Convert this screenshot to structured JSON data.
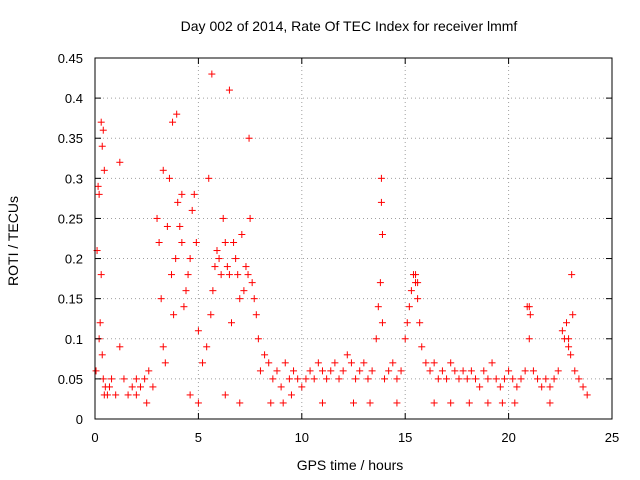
{
  "chart_data": {
    "type": "scatter",
    "title": "Day 002 of 2014, Rate Of TEC Index for receiver lmmf",
    "xlabel": "GPS time / hours",
    "ylabel": "ROTI / TECUs",
    "xlim": [
      0,
      25
    ],
    "ylim": [
      0,
      0.45
    ],
    "x_ticks": [
      "0",
      "5",
      "10",
      "15",
      "20",
      "25"
    ],
    "y_ticks": [
      "0",
      "0.05",
      "0.1",
      "0.15",
      "0.2",
      "0.25",
      "0.3",
      "0.35",
      "0.4",
      "0.45"
    ],
    "x_tick_values": [
      0,
      5,
      10,
      15,
      20,
      25
    ],
    "y_tick_values": [
      0,
      0.05,
      0.1,
      0.15,
      0.2,
      0.25,
      0.3,
      0.35,
      0.4,
      0.45
    ],
    "grid": true,
    "marker": "+",
    "marker_color": "#ff0000",
    "series": [
      {
        "name": "ROTI",
        "x": [
          0.05,
          0.1,
          0.15,
          0.2,
          0.25,
          0.3,
          0.35,
          0.4,
          0.45,
          0.5,
          0.6,
          0.7,
          0.8,
          1.0,
          1.2,
          1.4,
          1.6,
          1.8,
          2.0,
          2.2,
          2.4,
          2.6,
          2.8,
          3.0,
          3.1,
          3.2,
          3.3,
          3.4,
          3.5,
          3.6,
          3.7,
          3.8,
          3.9,
          4.0,
          4.1,
          4.2,
          4.3,
          4.4,
          4.5,
          4.6,
          4.7,
          4.8,
          4.9,
          5.0,
          5.2,
          5.4,
          5.5,
          5.6,
          5.7,
          5.8,
          5.9,
          6.0,
          6.1,
          6.2,
          6.3,
          6.4,
          6.5,
          6.6,
          6.7,
          6.8,
          6.9,
          7.0,
          7.1,
          7.2,
          7.3,
          7.4,
          7.5,
          7.6,
          7.7,
          7.8,
          7.9,
          8.0,
          8.2,
          8.4,
          8.6,
          8.8,
          9.0,
          9.2,
          9.4,
          9.6,
          9.8,
          10.0,
          10.2,
          10.4,
          10.6,
          10.8,
          11.0,
          11.2,
          11.4,
          11.6,
          11.8,
          12.0,
          12.2,
          12.4,
          12.6,
          12.8,
          13.0,
          13.2,
          13.4,
          13.6,
          13.7,
          13.8,
          13.9,
          14.0,
          14.2,
          14.4,
          14.6,
          14.8,
          15.0,
          15.1,
          15.2,
          15.3,
          15.4,
          15.5,
          15.6,
          15.7,
          15.8,
          16.0,
          16.2,
          16.4,
          16.6,
          16.8,
          17.0,
          17.2,
          17.4,
          17.6,
          17.8,
          18.0,
          18.2,
          18.4,
          18.6,
          18.8,
          19.0,
          19.2,
          19.4,
          19.6,
          19.8,
          20.0,
          20.2,
          20.4,
          20.6,
          20.8,
          20.9,
          21.0,
          21.2,
          21.4,
          21.6,
          21.8,
          22.0,
          22.2,
          22.4,
          22.6,
          22.7,
          22.8,
          22.9,
          23.0,
          23.2,
          23.4,
          23.6,
          23.8,
          0.3,
          0.35,
          0.4,
          0.2,
          0.45,
          1.2,
          3.3,
          3.75,
          3.95,
          4.2,
          5.65,
          6.5,
          7.45,
          13.85,
          13.85,
          13.9,
          15.5,
          15.6,
          21.0,
          21.05,
          22.9,
          23.1,
          23.05,
          2.0,
          2.5,
          4.6,
          5.0,
          6.3,
          7.0,
          8.5,
          9.1,
          9.5,
          11.0,
          12.5,
          13.3,
          14.6,
          16.4,
          17.2,
          18.1,
          19.0,
          19.7,
          20.3,
          22.0
        ],
        "y": [
          0.06,
          0.21,
          0.29,
          0.1,
          0.12,
          0.18,
          0.08,
          0.05,
          0.03,
          0.04,
          0.03,
          0.04,
          0.05,
          0.03,
          0.09,
          0.05,
          0.03,
          0.04,
          0.05,
          0.04,
          0.05,
          0.06,
          0.04,
          0.25,
          0.22,
          0.15,
          0.09,
          0.07,
          0.24,
          0.3,
          0.18,
          0.13,
          0.2,
          0.27,
          0.24,
          0.22,
          0.14,
          0.16,
          0.18,
          0.2,
          0.26,
          0.28,
          0.22,
          0.11,
          0.07,
          0.09,
          0.3,
          0.13,
          0.16,
          0.19,
          0.21,
          0.2,
          0.18,
          0.25,
          0.22,
          0.19,
          0.18,
          0.12,
          0.22,
          0.2,
          0.18,
          0.15,
          0.23,
          0.16,
          0.19,
          0.18,
          0.25,
          0.17,
          0.15,
          0.13,
          0.1,
          0.06,
          0.08,
          0.07,
          0.05,
          0.06,
          0.04,
          0.07,
          0.05,
          0.06,
          0.05,
          0.04,
          0.05,
          0.06,
          0.05,
          0.07,
          0.06,
          0.05,
          0.06,
          0.07,
          0.05,
          0.06,
          0.08,
          0.07,
          0.05,
          0.06,
          0.07,
          0.05,
          0.06,
          0.1,
          0.14,
          0.17,
          0.12,
          0.05,
          0.06,
          0.07,
          0.05,
          0.06,
          0.1,
          0.12,
          0.14,
          0.16,
          0.18,
          0.17,
          0.15,
          0.12,
          0.09,
          0.07,
          0.06,
          0.07,
          0.05,
          0.06,
          0.05,
          0.07,
          0.06,
          0.05,
          0.06,
          0.05,
          0.06,
          0.05,
          0.04,
          0.06,
          0.05,
          0.07,
          0.05,
          0.04,
          0.05,
          0.06,
          0.05,
          0.04,
          0.05,
          0.06,
          0.14,
          0.1,
          0.06,
          0.05,
          0.04,
          0.05,
          0.04,
          0.05,
          0.06,
          0.11,
          0.1,
          0.12,
          0.09,
          0.08,
          0.06,
          0.05,
          0.04,
          0.03,
          0.37,
          0.34,
          0.36,
          0.28,
          0.31,
          0.32,
          0.31,
          0.37,
          0.38,
          0.28,
          0.43,
          0.41,
          0.35,
          0.3,
          0.27,
          0.23,
          0.18,
          0.17,
          0.14,
          0.13,
          0.1,
          0.13,
          0.18,
          0.03,
          0.02,
          0.03,
          0.02,
          0.03,
          0.02,
          0.02,
          0.02,
          0.03,
          0.02,
          0.02,
          0.02,
          0.02,
          0.02,
          0.02,
          0.02,
          0.02,
          0.02,
          0.02,
          0.02
        ]
      }
    ]
  }
}
